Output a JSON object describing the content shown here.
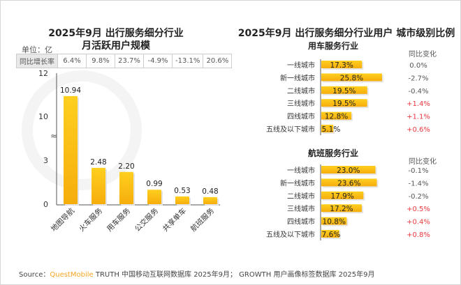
{
  "colors": {
    "bar": "#f9bd0f",
    "positive": "#e8383d",
    "neutral": "#555555",
    "brand": "#f5a623"
  },
  "watermark": "QUESTMOBILE",
  "left": {
    "title_line1": "2025年9月 出行服务细分行业",
    "title_line2": "月活跃用户规模",
    "unit": "单位：亿",
    "growth_label": "同比增长率",
    "growth": [
      "6.4%",
      "9.8%",
      "23.7%",
      "-4.9%",
      "-13.1%",
      "20.6%"
    ]
  },
  "right": {
    "title": "2025年9月 出行服务细分行业用户 城市级别比例",
    "change_header": "同比变化"
  },
  "chart_data": [
    {
      "type": "bar",
      "categories": [
        "地图导航",
        "火车服务",
        "用车服务",
        "公交服务",
        "共享单车",
        "航班服务"
      ],
      "values": [
        10.94,
        2.48,
        2.2,
        0.99,
        0.53,
        0.48
      ],
      "value_labels": [
        "10.94",
        "2.48",
        "2.20",
        "0.99",
        "0.53",
        "0.48"
      ],
      "yticks": [
        "0",
        "3",
        "10",
        "12"
      ],
      "ylim": [
        0,
        12
      ],
      "axis_break": [
        3,
        10
      ],
      "ylabel": "",
      "xlabel": ""
    },
    {
      "type": "bar",
      "orientation": "horizontal",
      "title": "用车服务行业",
      "categories": [
        "一线城市",
        "新一线城市",
        "二线城市",
        "三线城市",
        "四线城市",
        "五线及以下城市"
      ],
      "values": [
        17.3,
        25.8,
        19.5,
        19.5,
        12.8,
        5.1
      ],
      "value_labels": [
        "17.3%",
        "25.8%",
        "19.5%",
        "19.5%",
        "12.8%",
        "5.1%"
      ],
      "changes": [
        "0.0%",
        "-2.7%",
        "-0.4%",
        "+1.4%",
        "+1.1%",
        "+0.6%"
      ]
    },
    {
      "type": "bar",
      "orientation": "horizontal",
      "title": "航班服务行业",
      "categories": [
        "一线城市",
        "新一线城市",
        "二线城市",
        "三线城市",
        "四线城市",
        "五线及以下城市"
      ],
      "values": [
        23.0,
        23.6,
        17.9,
        17.2,
        10.8,
        7.6
      ],
      "value_labels": [
        "23.0%",
        "23.6%",
        "17.9%",
        "17.2%",
        "10.8%",
        "7.6%"
      ],
      "changes": [
        "-0.1%",
        "-1.4%",
        "-0.2%",
        "+0.5%",
        "+0.4%",
        "+0.8%"
      ]
    }
  ],
  "footer": {
    "prefix": "Source：",
    "brand": "QuestMobile",
    "text": " TRUTH 中国移动互联网数据库 2025年9月； GROWTH 用户画像标签数据库 2025年9月"
  }
}
